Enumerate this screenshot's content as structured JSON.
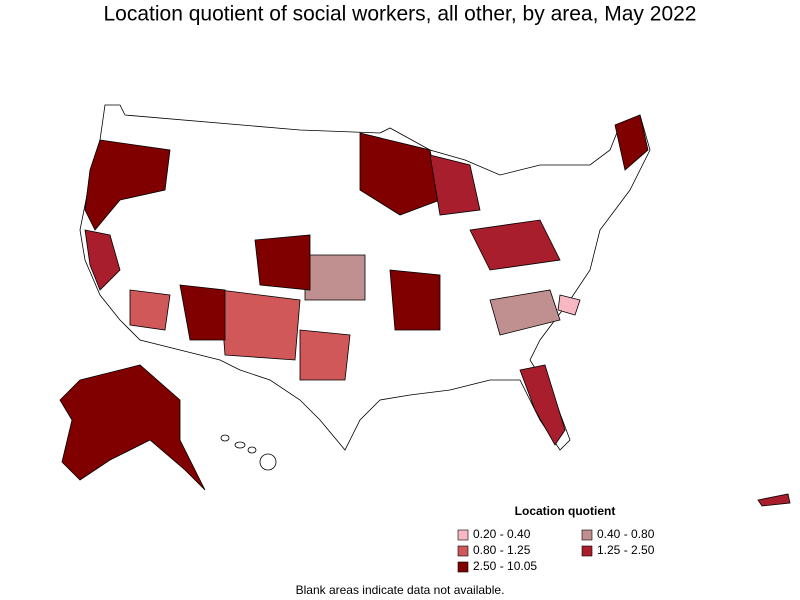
{
  "title": "Location quotient of social workers, all other, by area, May 2022",
  "legend": {
    "title": "Location quotient",
    "items": [
      {
        "label": "0.20 - 0.40",
        "color": "#f7b8c4"
      },
      {
        "label": "0.40 - 0.80",
        "color": "#c09090"
      },
      {
        "label": "0.80 - 1.25",
        "color": "#d05858"
      },
      {
        "label": "1.25 - 2.50",
        "color": "#a81e2c"
      },
      {
        "label": "2.50 - 10.05",
        "color": "#800000"
      }
    ]
  },
  "footnote": "Blank areas indicate data not available."
}
